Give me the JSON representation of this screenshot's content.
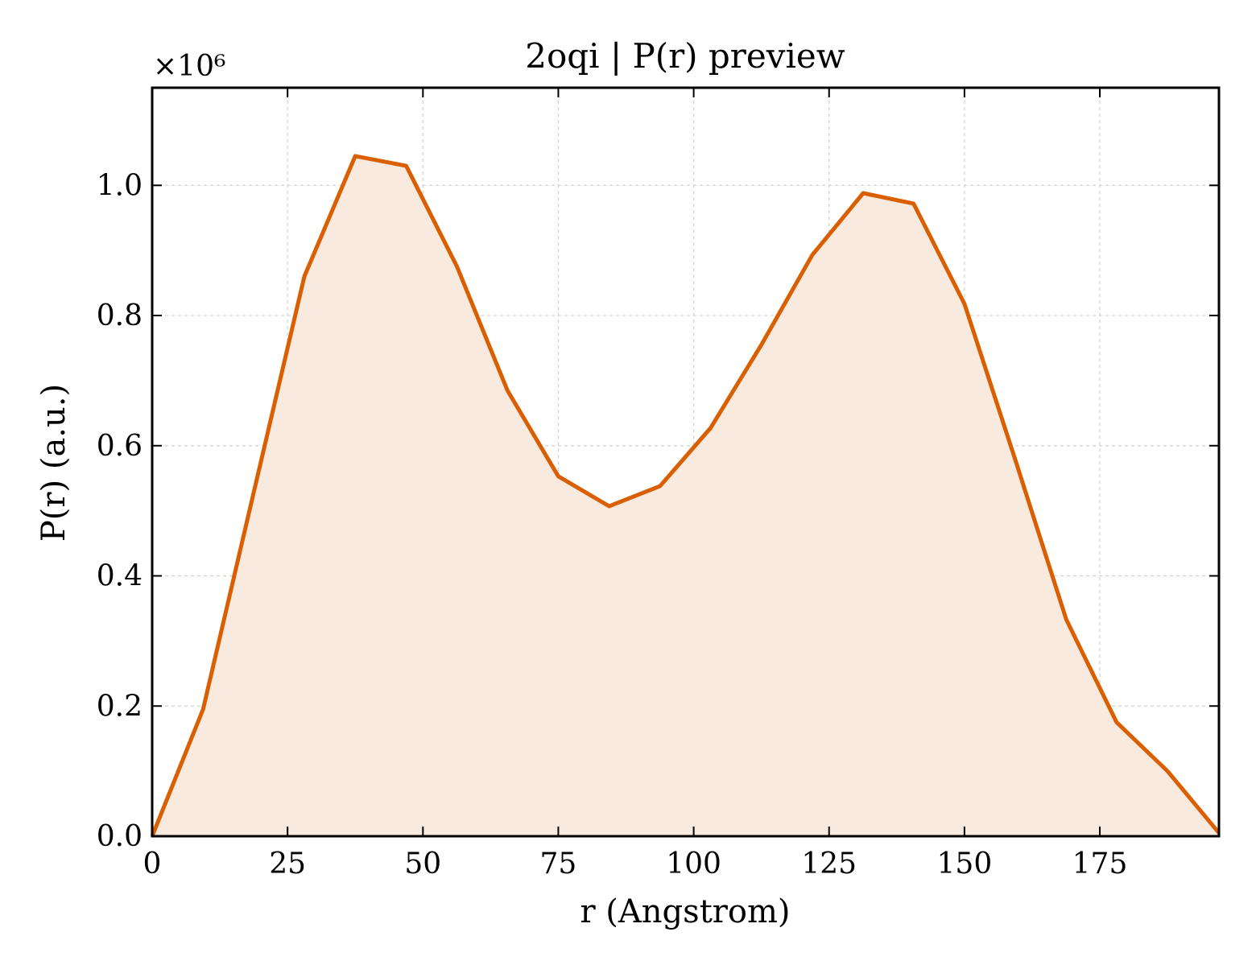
{
  "chart_data": {
    "type": "area",
    "title": "2oqi | P(r) preview",
    "xlabel": "r (Angstrom)",
    "ylabel": "P(r) (a.u.)",
    "y_offset_label": "×10⁶",
    "y_scale_multiplier": 1000000,
    "xlim": [
      0,
      197
    ],
    "ylim": [
      0,
      1.15
    ],
    "x_ticks": [
      0,
      25,
      50,
      75,
      100,
      125,
      150,
      175
    ],
    "x_tick_labels": [
      "0",
      "25",
      "50",
      "75",
      "100",
      "125",
      "150",
      "175"
    ],
    "y_ticks": [
      0.0,
      0.2,
      0.4,
      0.6,
      0.8,
      1.0
    ],
    "y_tick_labels": [
      "0.0",
      "0.2",
      "0.4",
      "0.6",
      "0.8",
      "1.0"
    ],
    "grid": true,
    "colors": {
      "line": "#d95f02",
      "fill": "#f8eadf",
      "grid": "#d0d0d0",
      "axis": "#000000"
    },
    "series": [
      {
        "x": [
          0,
          9.4,
          18.8,
          28.1,
          37.5,
          46.9,
          56.3,
          65.6,
          75.0,
          84.4,
          93.8,
          103.1,
          112.5,
          121.9,
          131.3,
          140.6,
          150.0,
          159.4,
          168.8,
          178.1,
          187.5,
          197.0
        ],
        "y": [
          0.0,
          0.195,
          0.53,
          0.86,
          1.045,
          1.03,
          0.875,
          0.685,
          0.553,
          0.507,
          0.538,
          0.627,
          0.755,
          0.893,
          0.988,
          0.972,
          0.818,
          0.578,
          0.333,
          0.175,
          0.1,
          0.005
        ]
      }
    ]
  }
}
